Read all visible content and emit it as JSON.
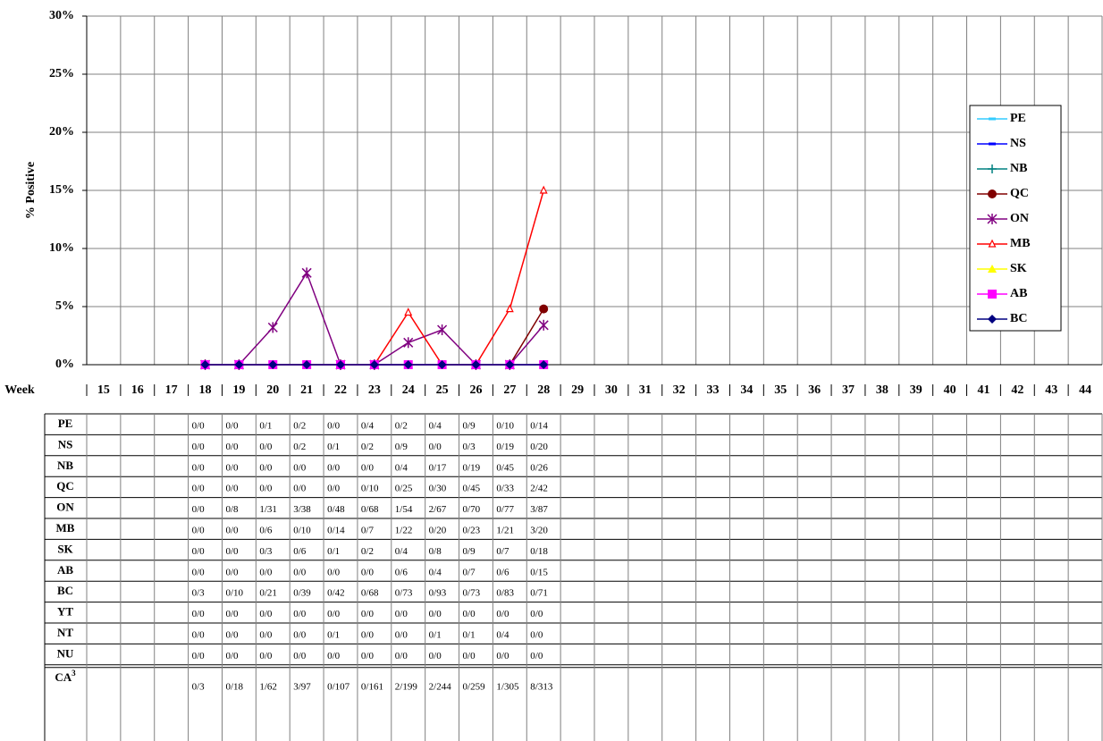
{
  "chart_data": {
    "type": "line",
    "y_label": "% Positive",
    "x_label": "Week",
    "categories": [
      15,
      16,
      17,
      18,
      19,
      20,
      21,
      22,
      23,
      24,
      25,
      26,
      27,
      28,
      29,
      30,
      31,
      32,
      33,
      34,
      35,
      36,
      37,
      38,
      39,
      40,
      41,
      42,
      43,
      44
    ],
    "ylim": [
      0,
      30
    ],
    "yticks": [
      {
        "value": 0,
        "label": "0%"
      },
      {
        "value": 5,
        "label": "5%"
      },
      {
        "value": 10,
        "label": "10%"
      },
      {
        "value": 15,
        "label": "15%"
      },
      {
        "value": 20,
        "label": "20%"
      },
      {
        "value": 25,
        "label": "25%"
      },
      {
        "value": 30,
        "label": "30%"
      }
    ],
    "grid": true,
    "series": [
      {
        "name": "PE",
        "color": "#33ccff",
        "marker": "dash",
        "values": [
          null,
          null,
          null,
          0,
          0,
          0,
          0,
          0,
          0,
          0,
          0,
          0,
          0,
          0,
          null,
          null,
          null,
          null,
          null,
          null,
          null,
          null,
          null,
          null,
          null,
          null,
          null,
          null,
          null,
          null
        ]
      },
      {
        "name": "NS",
        "color": "#0000ff",
        "marker": "dash",
        "values": [
          null,
          null,
          null,
          0,
          0,
          0,
          0,
          0,
          0,
          0,
          0,
          0,
          0,
          0,
          null,
          null,
          null,
          null,
          null,
          null,
          null,
          null,
          null,
          null,
          null,
          null,
          null,
          null,
          null,
          null
        ]
      },
      {
        "name": "NB",
        "color": "#008080",
        "marker": "plus",
        "values": [
          null,
          null,
          null,
          0,
          0,
          0,
          0,
          0,
          0,
          0,
          0,
          0,
          0,
          0,
          null,
          null,
          null,
          null,
          null,
          null,
          null,
          null,
          null,
          null,
          null,
          null,
          null,
          null,
          null,
          null
        ]
      },
      {
        "name": "QC",
        "color": "#800000",
        "marker": "circle",
        "values": [
          null,
          null,
          null,
          0,
          0,
          0,
          0,
          0,
          0,
          0,
          0,
          0,
          0,
          4.8,
          null,
          null,
          null,
          null,
          null,
          null,
          null,
          null,
          null,
          null,
          null,
          null,
          null,
          null,
          null,
          null
        ]
      },
      {
        "name": "ON",
        "color": "#800080",
        "marker": "asterisk",
        "values": [
          null,
          null,
          null,
          0,
          0,
          3.2,
          7.9,
          0,
          0,
          1.9,
          3.0,
          0,
          0,
          3.4,
          null,
          null,
          null,
          null,
          null,
          null,
          null,
          null,
          null,
          null,
          null,
          null,
          null,
          null,
          null,
          null
        ]
      },
      {
        "name": "MB",
        "color": "#ff0000",
        "marker": "triangle-open",
        "values": [
          null,
          null,
          null,
          0,
          0,
          0,
          0,
          0,
          0,
          4.5,
          0,
          0,
          4.8,
          15,
          null,
          null,
          null,
          null,
          null,
          null,
          null,
          null,
          null,
          null,
          null,
          null,
          null,
          null,
          null,
          null
        ]
      },
      {
        "name": "SK",
        "color": "#ffff00",
        "marker": "triangle",
        "values": [
          null,
          null,
          null,
          0,
          0,
          0,
          0,
          0,
          0,
          0,
          0,
          0,
          0,
          0,
          null,
          null,
          null,
          null,
          null,
          null,
          null,
          null,
          null,
          null,
          null,
          null,
          null,
          null,
          null,
          null
        ]
      },
      {
        "name": "AB",
        "color": "#ff00ff",
        "marker": "square",
        "values": [
          null,
          null,
          null,
          0,
          0,
          0,
          0,
          0,
          0,
          0,
          0,
          0,
          0,
          0,
          null,
          null,
          null,
          null,
          null,
          null,
          null,
          null,
          null,
          null,
          null,
          null,
          null,
          null,
          null,
          null
        ]
      },
      {
        "name": "BC",
        "color": "#000080",
        "marker": "diamond",
        "values": [
          null,
          null,
          null,
          0,
          0,
          0,
          0,
          0,
          0,
          0,
          0,
          0,
          0,
          0,
          null,
          null,
          null,
          null,
          null,
          null,
          null,
          null,
          null,
          null,
          null,
          null,
          null,
          null,
          null,
          null
        ]
      }
    ]
  },
  "table": {
    "rows": [
      {
        "label": "PE",
        "cells": [
          null,
          null,
          null,
          "0/0",
          "0/0",
          "0/1",
          "0/2",
          "0/0",
          "0/4",
          "0/2",
          "0/4",
          "0/9",
          "0/10",
          "0/14",
          null,
          null,
          null,
          null,
          null,
          null,
          null,
          null,
          null,
          null,
          null,
          null,
          null,
          null,
          null,
          null
        ]
      },
      {
        "label": "NS",
        "cells": [
          null,
          null,
          null,
          "0/0",
          "0/0",
          "0/0",
          "0/2",
          "0/1",
          "0/2",
          "0/9",
          "0/0",
          "0/3",
          "0/19",
          "0/20",
          null,
          null,
          null,
          null,
          null,
          null,
          null,
          null,
          null,
          null,
          null,
          null,
          null,
          null,
          null,
          null
        ]
      },
      {
        "label": "NB",
        "cells": [
          null,
          null,
          null,
          "0/0",
          "0/0",
          "0/0",
          "0/0",
          "0/0",
          "0/0",
          "0/4",
          "0/17",
          "0/19",
          "0/45",
          "0/26",
          null,
          null,
          null,
          null,
          null,
          null,
          null,
          null,
          null,
          null,
          null,
          null,
          null,
          null,
          null,
          null
        ]
      },
      {
        "label": "QC",
        "cells": [
          null,
          null,
          null,
          "0/0",
          "0/0",
          "0/0",
          "0/0",
          "0/0",
          "0/10",
          "0/25",
          "0/30",
          "0/45",
          "0/33",
          "2/42",
          null,
          null,
          null,
          null,
          null,
          null,
          null,
          null,
          null,
          null,
          null,
          null,
          null,
          null,
          null,
          null
        ]
      },
      {
        "label": "ON",
        "cells": [
          null,
          null,
          null,
          "0/0",
          "0/8",
          "1/31",
          "3/38",
          "0/48",
          "0/68",
          "1/54",
          "2/67",
          "0/70",
          "0/77",
          "3/87",
          null,
          null,
          null,
          null,
          null,
          null,
          null,
          null,
          null,
          null,
          null,
          null,
          null,
          null,
          null,
          null
        ]
      },
      {
        "label": "MB",
        "cells": [
          null,
          null,
          null,
          "0/0",
          "0/0",
          "0/6",
          "0/10",
          "0/14",
          "0/7",
          "1/22",
          "0/20",
          "0/23",
          "1/21",
          "3/20",
          null,
          null,
          null,
          null,
          null,
          null,
          null,
          null,
          null,
          null,
          null,
          null,
          null,
          null,
          null,
          null
        ]
      },
      {
        "label": "SK",
        "cells": [
          null,
          null,
          null,
          "0/0",
          "0/0",
          "0/3",
          "0/6",
          "0/1",
          "0/2",
          "0/4",
          "0/8",
          "0/9",
          "0/7",
          "0/18",
          null,
          null,
          null,
          null,
          null,
          null,
          null,
          null,
          null,
          null,
          null,
          null,
          null,
          null,
          null,
          null
        ]
      },
      {
        "label": "AB",
        "cells": [
          null,
          null,
          null,
          "0/0",
          "0/0",
          "0/0",
          "0/0",
          "0/0",
          "0/0",
          "0/6",
          "0/4",
          "0/7",
          "0/6",
          "0/15",
          null,
          null,
          null,
          null,
          null,
          null,
          null,
          null,
          null,
          null,
          null,
          null,
          null,
          null,
          null,
          null
        ]
      },
      {
        "label": "BC",
        "cells": [
          null,
          null,
          null,
          "0/3",
          "0/10",
          "0/21",
          "0/39",
          "0/42",
          "0/68",
          "0/73",
          "0/93",
          "0/73",
          "0/83",
          "0/71",
          null,
          null,
          null,
          null,
          null,
          null,
          null,
          null,
          null,
          null,
          null,
          null,
          null,
          null,
          null,
          null
        ]
      },
      {
        "label": "YT",
        "cells": [
          null,
          null,
          null,
          "0/0",
          "0/0",
          "0/0",
          "0/0",
          "0/0",
          "0/0",
          "0/0",
          "0/0",
          "0/0",
          "0/0",
          "0/0",
          null,
          null,
          null,
          null,
          null,
          null,
          null,
          null,
          null,
          null,
          null,
          null,
          null,
          null,
          null,
          null
        ]
      },
      {
        "label": "NT",
        "cells": [
          null,
          null,
          null,
          "0/0",
          "0/0",
          "0/0",
          "0/0",
          "0/1",
          "0/0",
          "0/0",
          "0/1",
          "0/1",
          "0/4",
          "0/0",
          null,
          null,
          null,
          null,
          null,
          null,
          null,
          null,
          null,
          null,
          null,
          null,
          null,
          null,
          null,
          null
        ]
      },
      {
        "label": "NU",
        "cells": [
          null,
          null,
          null,
          "0/0",
          "0/0",
          "0/0",
          "0/0",
          "0/0",
          "0/0",
          "0/0",
          "0/0",
          "0/0",
          "0/0",
          "0/0",
          null,
          null,
          null,
          null,
          null,
          null,
          null,
          null,
          null,
          null,
          null,
          null,
          null,
          null,
          null,
          null
        ]
      },
      {
        "label": "CA",
        "footnote": "3",
        "cells": [
          null,
          null,
          null,
          "0/3",
          "0/18",
          "1/62",
          "3/97",
          "0/107",
          "0/161",
          "2/199",
          "2/244",
          "0/259",
          "1/305",
          "8/313",
          null,
          null,
          null,
          null,
          null,
          null,
          null,
          null,
          null,
          null,
          null,
          null,
          null,
          null,
          null,
          null
        ]
      }
    ]
  }
}
